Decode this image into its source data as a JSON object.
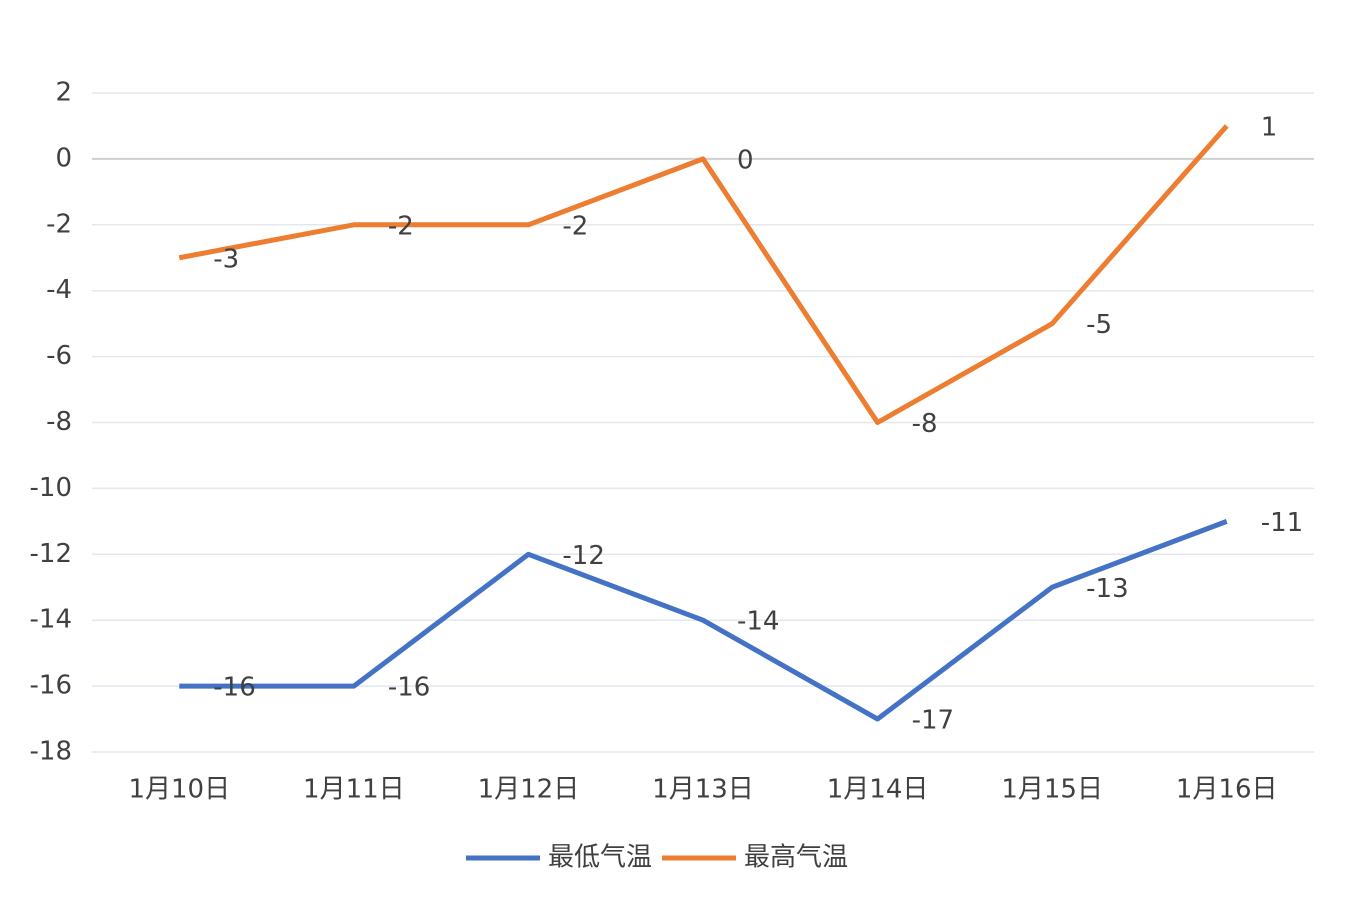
{
  "chart_data": {
    "type": "line",
    "categories": [
      "1月10日",
      "1月11日",
      "1月12日",
      "1月13日",
      "1月14日",
      "1月15日",
      "1月16日"
    ],
    "series": [
      {
        "name": "最低气温",
        "color": "#4472c4",
        "values": [
          -16,
          -16,
          -12,
          -14,
          -17,
          -13,
          -11
        ]
      },
      {
        "name": "最高气温",
        "color": "#ed7d31",
        "values": [
          -3,
          -2,
          -2,
          0,
          -8,
          -5,
          1
        ]
      }
    ],
    "ylim": [
      -18,
      2
    ],
    "yticks": [
      -18,
      -16,
      -14,
      -12,
      -10,
      -8,
      -6,
      -4,
      -2,
      0,
      2
    ],
    "grid": true,
    "legend": "bottom"
  }
}
